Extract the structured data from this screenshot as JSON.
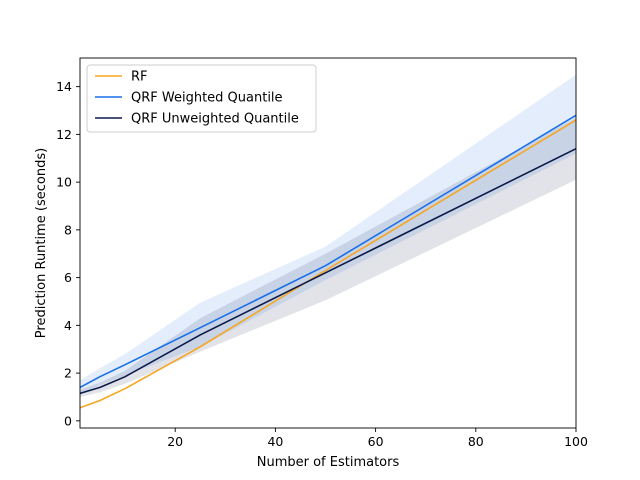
{
  "chart_data": {
    "type": "line",
    "xlabel": "Number of Estimators",
    "ylabel": "Prediction Runtime (seconds)",
    "xlim": [
      1,
      100
    ],
    "ylim": [
      -0.3,
      15.2
    ],
    "xticks": [
      20,
      40,
      60,
      80,
      100
    ],
    "yticks": [
      0,
      2,
      4,
      6,
      8,
      10,
      12,
      14
    ],
    "grid": false,
    "legend_position": "top-left",
    "x": [
      1,
      5,
      10,
      25,
      50,
      100
    ],
    "series": [
      {
        "name": "RF",
        "color": "#f5a623",
        "values": [
          0.55,
          0.85,
          1.35,
          3.1,
          6.3,
          12.6
        ],
        "band": null
      },
      {
        "name": "QRF Weighted Quantile",
        "color": "#1a6fe8",
        "values": [
          1.4,
          1.85,
          2.35,
          3.9,
          6.5,
          12.8
        ],
        "band_lower": [
          1.1,
          1.5,
          1.9,
          3.1,
          5.9,
          11.2
        ],
        "band_upper": [
          1.7,
          2.2,
          2.8,
          4.95,
          7.3,
          14.5
        ]
      },
      {
        "name": "QRF Unweighted Quantile",
        "color": "#0b1a4a",
        "values": [
          1.15,
          1.4,
          1.85,
          3.6,
          6.2,
          11.4
        ],
        "band_lower": [
          1.0,
          1.2,
          1.55,
          2.9,
          5.05,
          10.1
        ],
        "band_upper": [
          1.3,
          1.6,
          2.1,
          4.3,
          7.0,
          12.7
        ]
      }
    ]
  }
}
